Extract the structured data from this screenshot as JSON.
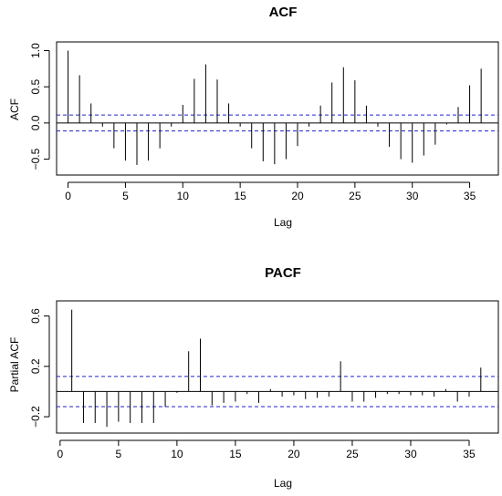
{
  "chart_data": [
    {
      "type": "bar",
      "title": "ACF",
      "xlabel": "Lag",
      "ylabel": "ACF",
      "xlim": [
        -1,
        37.5
      ],
      "ylim": [
        -0.72,
        1.12
      ],
      "xticks": [
        0,
        5,
        10,
        15,
        20,
        25,
        30,
        35
      ],
      "yticks": [
        -0.5,
        0.0,
        0.5,
        1.0
      ],
      "ytick_labels": [
        "−0.5",
        "0.0",
        "0.5",
        "1.0"
      ],
      "ci": [
        0.11,
        -0.11
      ],
      "ci_color": "#2222cc",
      "x": [
        0,
        1,
        2,
        3,
        4,
        5,
        6,
        7,
        8,
        9,
        10,
        11,
        12,
        13,
        14,
        15,
        16,
        17,
        18,
        19,
        20,
        21,
        22,
        23,
        24,
        25,
        26,
        27,
        28,
        29,
        30,
        31,
        32,
        33,
        34,
        35,
        36
      ],
      "values": [
        1.0,
        0.66,
        0.27,
        -0.05,
        -0.35,
        -0.52,
        -0.58,
        -0.52,
        -0.35,
        -0.05,
        0.25,
        0.61,
        0.81,
        0.6,
        0.27,
        -0.05,
        -0.35,
        -0.53,
        -0.57,
        -0.5,
        -0.32,
        -0.05,
        0.24,
        0.56,
        0.77,
        0.59,
        0.24,
        -0.05,
        -0.33,
        -0.5,
        -0.55,
        -0.45,
        -0.3,
        -0.02,
        0.22,
        0.52,
        0.75
      ]
    },
    {
      "type": "bar",
      "title": "PACF",
      "xlabel": "Lag",
      "ylabel": "Partial ACF",
      "xlim": [
        -0.3,
        37.5
      ],
      "ylim": [
        -0.33,
        0.72
      ],
      "xticks": [
        0,
        5,
        10,
        15,
        20,
        25,
        30,
        35
      ],
      "yticks": [
        -0.2,
        0.2,
        0.6
      ],
      "ytick_labels": [
        "−0.2",
        "0.2",
        "0.6"
      ],
      "ci": [
        0.12,
        -0.12
      ],
      "ci_color": "#2222cc",
      "x": [
        1,
        2,
        3,
        4,
        5,
        6,
        7,
        8,
        9,
        10,
        11,
        12,
        13,
        14,
        15,
        16,
        17,
        18,
        19,
        20,
        21,
        22,
        23,
        24,
        25,
        26,
        27,
        28,
        29,
        30,
        31,
        32,
        33,
        34,
        35,
        36
      ],
      "values": [
        0.65,
        -0.25,
        -0.25,
        -0.28,
        -0.24,
        -0.25,
        -0.25,
        -0.25,
        -0.12,
        -0.01,
        0.32,
        0.42,
        -0.11,
        -0.09,
        -0.08,
        -0.02,
        -0.09,
        0.02,
        -0.04,
        -0.03,
        -0.06,
        -0.05,
        -0.04,
        0.24,
        -0.08,
        -0.08,
        -0.05,
        -0.02,
        -0.02,
        -0.03,
        -0.03,
        -0.04,
        0.02,
        -0.08,
        -0.04,
        0.19
      ]
    }
  ]
}
